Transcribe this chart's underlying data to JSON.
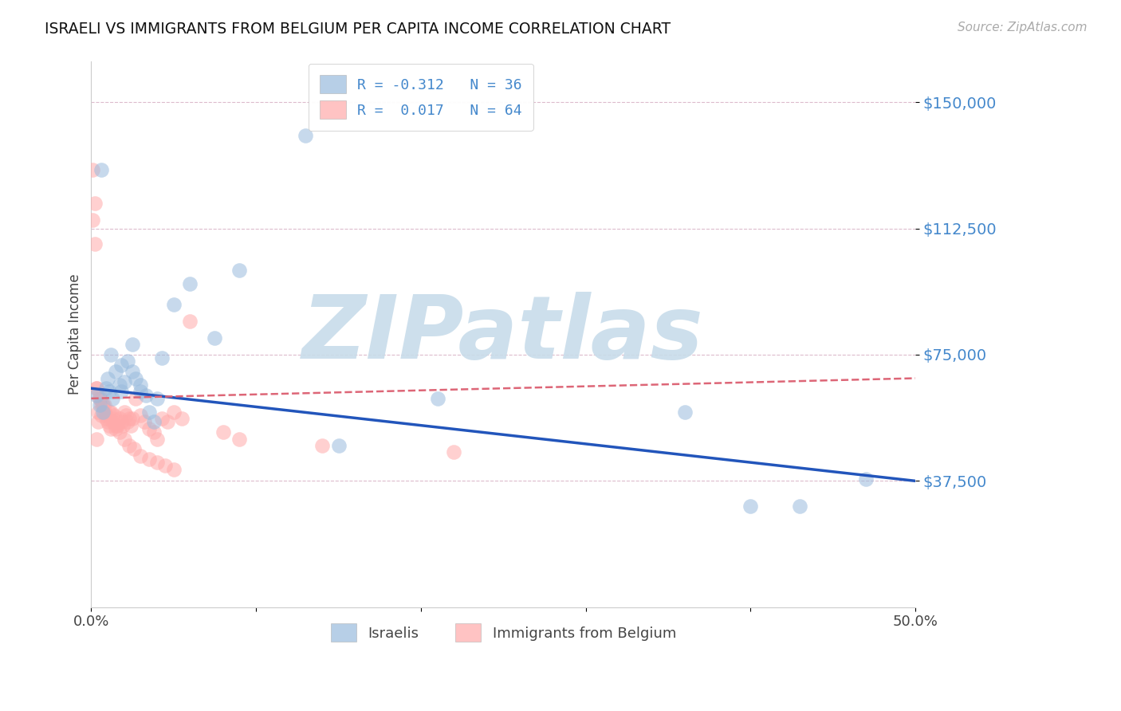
{
  "title": "ISRAELI VS IMMIGRANTS FROM BELGIUM PER CAPITA INCOME CORRELATION CHART",
  "source": "Source: ZipAtlas.com",
  "ylabel": "Per Capita Income",
  "xlim": [
    0.0,
    0.5
  ],
  "ylim": [
    0,
    162000
  ],
  "yticks": [
    37500,
    75000,
    112500,
    150000
  ],
  "ytick_labels": [
    "$37,500",
    "$75,000",
    "$112,500",
    "$150,000"
  ],
  "xticks": [
    0.0,
    0.1,
    0.2,
    0.3,
    0.4,
    0.5
  ],
  "xtick_labels": [
    "0.0%",
    "",
    "",
    "",
    "",
    "50.0%"
  ],
  "blue_color": "#99BBDD",
  "pink_color": "#FFAAAA",
  "trend_blue_color": "#2255BB",
  "trend_pink_color": "#DD6677",
  "tick_label_color": "#4488CC",
  "grid_color": "#DDBBCC",
  "watermark_text": "ZIPatlas",
  "watermark_color": "#C8DCEA",
  "legend_line1": "R = -0.312   N = 36",
  "legend_line2": "R =  0.017   N = 64",
  "legend_label_blue": "Israelis",
  "legend_label_pink": "Immigrants from Belgium",
  "blue_trend_x0": 0.0,
  "blue_trend_y0": 65000,
  "blue_trend_x1": 0.5,
  "blue_trend_y1": 37500,
  "pink_trend_x0": 0.0,
  "pink_trend_y0": 62000,
  "pink_trend_x1": 0.5,
  "pink_trend_y1": 68000,
  "israelis_x": [
    0.003,
    0.005,
    0.007,
    0.009,
    0.01,
    0.011,
    0.013,
    0.015,
    0.017,
    0.018,
    0.02,
    0.022,
    0.025,
    0.027,
    0.03,
    0.033,
    0.035,
    0.038,
    0.04,
    0.043,
    0.06,
    0.075,
    0.09,
    0.13,
    0.15,
    0.21,
    0.36,
    0.4,
    0.43,
    0.47,
    0.006,
    0.012,
    0.018,
    0.025,
    0.03,
    0.05
  ],
  "israelis_y": [
    63000,
    60000,
    58000,
    65000,
    68000,
    64000,
    62000,
    70000,
    66000,
    72000,
    67000,
    73000,
    78000,
    68000,
    66000,
    63000,
    58000,
    55000,
    62000,
    74000,
    96000,
    80000,
    100000,
    140000,
    48000,
    62000,
    58000,
    30000,
    30000,
    38000,
    130000,
    75000,
    64000,
    70000,
    64000,
    90000
  ],
  "belgium_x": [
    0.001,
    0.002,
    0.003,
    0.004,
    0.005,
    0.006,
    0.007,
    0.008,
    0.009,
    0.01,
    0.011,
    0.012,
    0.013,
    0.014,
    0.015,
    0.016,
    0.017,
    0.018,
    0.019,
    0.02,
    0.021,
    0.022,
    0.023,
    0.024,
    0.025,
    0.027,
    0.03,
    0.032,
    0.035,
    0.038,
    0.04,
    0.043,
    0.046,
    0.05,
    0.055,
    0.06,
    0.08,
    0.09,
    0.14,
    0.22,
    0.001,
    0.002,
    0.003,
    0.004,
    0.005,
    0.006,
    0.007,
    0.009,
    0.011,
    0.013,
    0.015,
    0.017,
    0.02,
    0.023,
    0.026,
    0.03,
    0.035,
    0.04,
    0.045,
    0.05,
    0.003,
    0.005,
    0.008,
    0.012
  ],
  "belgium_y": [
    130000,
    120000,
    50000,
    58000,
    62000,
    57000,
    60000,
    58000,
    56000,
    55000,
    54000,
    53000,
    55000,
    57000,
    53000,
    54000,
    56000,
    55000,
    54000,
    58000,
    57000,
    55000,
    56000,
    54000,
    56000,
    62000,
    57000,
    55000,
    53000,
    52000,
    50000,
    56000,
    55000,
    58000,
    56000,
    85000,
    52000,
    50000,
    48000,
    46000,
    115000,
    108000,
    65000,
    55000,
    62000,
    60000,
    60000,
    57000,
    58000,
    56000,
    54000,
    52000,
    50000,
    48000,
    47000,
    45000,
    44000,
    43000,
    42000,
    41000,
    65000,
    63000,
    60000,
    58000
  ]
}
